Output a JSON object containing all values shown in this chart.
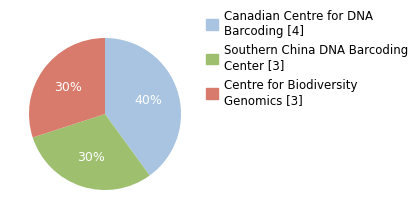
{
  "legend_labels": [
    "Canadian Centre for DNA\nBarcoding [4]",
    "Southern China DNA Barcoding\nCenter [3]",
    "Centre for Biodiversity\nGenomics [3]"
  ],
  "values": [
    4,
    3,
    3
  ],
  "colors": [
    "#a8c4e0",
    "#9dbf6e",
    "#d97b6c"
  ],
  "background_color": "#ffffff",
  "text_color": "#ffffff",
  "fontsize_pct": 9,
  "fontsize_legend": 8.5,
  "startangle": 90,
  "pctdistance": 0.6
}
